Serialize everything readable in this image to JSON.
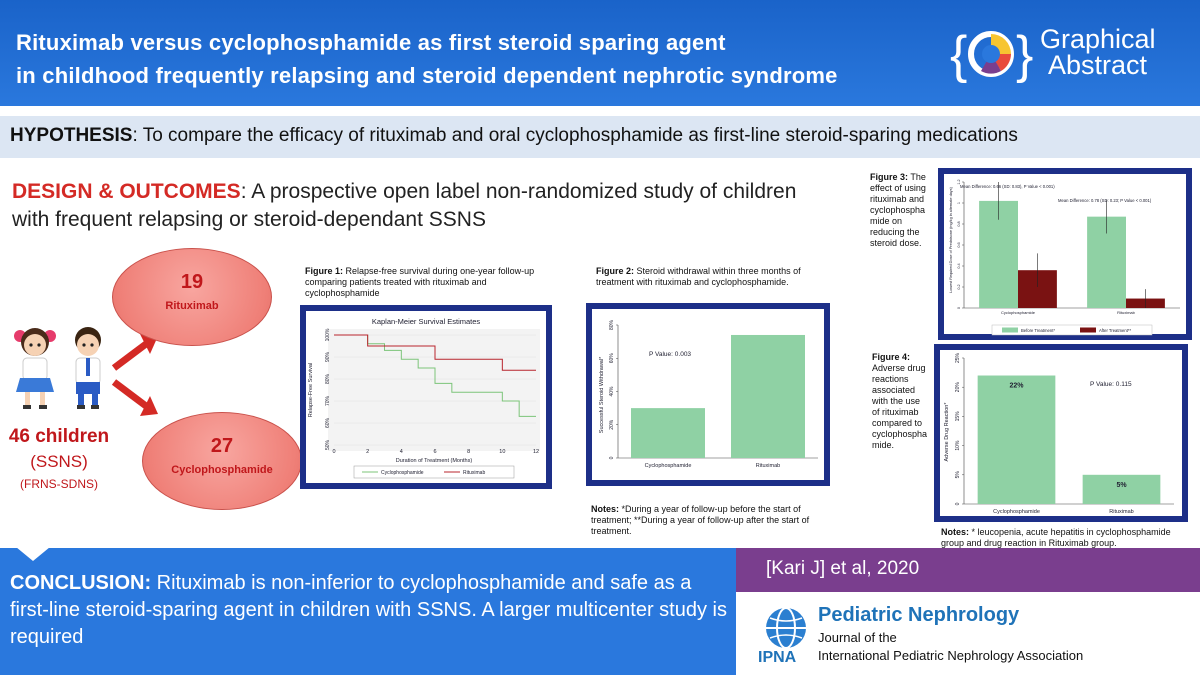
{
  "header": {
    "title_line1": "Rituximab versus cyclophosphamide as first steroid sparing agent",
    "title_line2": "in childhood frequently relapsing and steroid dependent nephrotic syndrome",
    "badge_line1": "Graphical",
    "badge_line2": "Abstract"
  },
  "hypothesis": {
    "label": "HYPOTHESIS",
    "text": ": To compare the efficacy of rituximab and oral cyclophosphamide as first-line steroid-sparing medications"
  },
  "design": {
    "label": "DESIGN & OUTCOMES",
    "text1": ": A prospective open label non-randomized study of children",
    "text2": "with frequent relapsing or steroid-dependant SSNS"
  },
  "participants": {
    "total": "46 children",
    "ssns": "(SSNS)",
    "frns": "(FRNS-SDNS)",
    "rituximab_count": "19",
    "rituximab_label": "Rituximab",
    "cyclo_count": "27",
    "cyclo_label": "Cyclophosphamide"
  },
  "figure1": {
    "caption_bold": "Figure 1:",
    "caption": " Relapse-free survival during one-year follow-up comparing patients treated with rituximab and cyclophosphamide"
  },
  "figure2": {
    "caption_bold": "Figure 2:",
    "caption": " Steroid withdrawal within three months of treatment with rituximab and cyclophosphamide.",
    "notes_bold": "Notes:",
    "notes": " *During a year of follow-up before the start of treatment; **During a year of follow-up after the start of treatment."
  },
  "figure3": {
    "caption_bold": "Figure 3:",
    "caption_lines": [
      "The",
      "effect of using",
      "rituximab and",
      "cyclophospha",
      "mide on",
      "reducing the",
      "steroid dose."
    ]
  },
  "figure4": {
    "caption_bold": "Figure 4:",
    "caption_lines": [
      "Adverse drug",
      "reactions",
      "associated",
      "with the use",
      "of rituximab",
      "compared to",
      "cyclophospha",
      "mide."
    ],
    "notes_bold": "Notes:",
    "notes": " * leucopenia, acute hepatitis in cyclophosphamide group and drug reaction in Rituximab group."
  },
  "conclusion": {
    "label": "CONCLUSION:",
    "text": " Rituximab is non-inferior to cyclophosphamide and safe as a first-line steroid-sparing agent in children with SSNS. A larger multicenter study is required"
  },
  "reference": {
    "text": "[Kari J] et al, 2020"
  },
  "journal": {
    "title": "Pediatric Nephrology",
    "line1": "Journal of the",
    "line2": "International Pediatric Nephrology Association",
    "logo_text": "IPNA"
  },
  "chart_data": [
    {
      "type": "line",
      "title": "Kaplan-Meier Survival Estimates",
      "xlabel": "Duration of Treatment (Months)",
      "ylabel": "Relapse-Free Survival",
      "xticks": [
        0,
        2,
        4,
        6,
        8,
        10,
        12
      ],
      "yticks": [
        "50%",
        "60%",
        "70%",
        "80%",
        "90%",
        "100%"
      ],
      "xlim": [
        0,
        12
      ],
      "ylim": [
        0.5,
        1.0
      ],
      "legend_position": "bottom",
      "series": [
        {
          "name": "Cyclophosphamide",
          "color": "#7cc47a",
          "x": [
            0,
            2,
            2,
            3,
            3,
            4,
            4,
            5,
            5,
            6,
            6,
            7,
            7,
            10,
            10,
            11,
            11,
            12
          ],
          "y": [
            1.0,
            1.0,
            0.96,
            0.96,
            0.93,
            0.93,
            0.89,
            0.89,
            0.85,
            0.85,
            0.78,
            0.78,
            0.74,
            0.74,
            0.7,
            0.7,
            0.63,
            0.63
          ]
        },
        {
          "name": "Rituximab",
          "color": "#b8242c",
          "x": [
            0,
            2,
            2,
            6,
            6,
            10,
            10,
            12
          ],
          "y": [
            1.0,
            1.0,
            0.95,
            0.95,
            0.89,
            0.89,
            0.84,
            0.84
          ]
        }
      ]
    },
    {
      "type": "bar",
      "ylabel": "Successful Steroid Withdrawal*",
      "categories": [
        "Cyclophosphamide",
        "Rituximab"
      ],
      "values": [
        30,
        74
      ],
      "yticks": [
        "0",
        "20%",
        "40%",
        "60%",
        "80%"
      ],
      "ylim": [
        0,
        80
      ],
      "annotation": "P Value: 0.003",
      "color": "#8fd1a4"
    },
    {
      "type": "bar",
      "ylabel": "Lowest Required Dose of Prednisone (mg/kg in alternate days)",
      "categories": [
        "Cyclophosphamide",
        "Rituximab"
      ],
      "series": [
        {
          "name": "Before Treatment*",
          "values": [
            1.02,
            0.87
          ],
          "error": [
            0.18,
            0.16
          ],
          "color": "#8fd1a4"
        },
        {
          "name": "After Treatment**",
          "values": [
            0.36,
            0.09
          ],
          "error": [
            0.16,
            0.09
          ],
          "color": "#7a1212"
        }
      ],
      "yticks": [
        "0",
        "0.2",
        "0.4",
        "0.6",
        "0.8",
        "1",
        "1.2"
      ],
      "ylim": [
        0,
        1.2
      ],
      "annotations": [
        "Mean Difference: 0.66 (SD: 0.83), P Value < 0.001)",
        "Mean Difference: 0.78 (SD: 0.23; P Value < 0.001)"
      ],
      "legend_position": "bottom"
    },
    {
      "type": "bar",
      "ylabel": "Adverse Drug Reaction*",
      "categories": [
        "Cyclophosphamide",
        "Rituximab"
      ],
      "values": [
        22,
        5
      ],
      "labels": [
        "22%",
        "5%"
      ],
      "yticks": [
        "0",
        "5%",
        "10%",
        "15%",
        "20%",
        "25%"
      ],
      "ylim": [
        0,
        25
      ],
      "annotation": "P Value: 0.115",
      "color": "#8fd1a4"
    }
  ]
}
